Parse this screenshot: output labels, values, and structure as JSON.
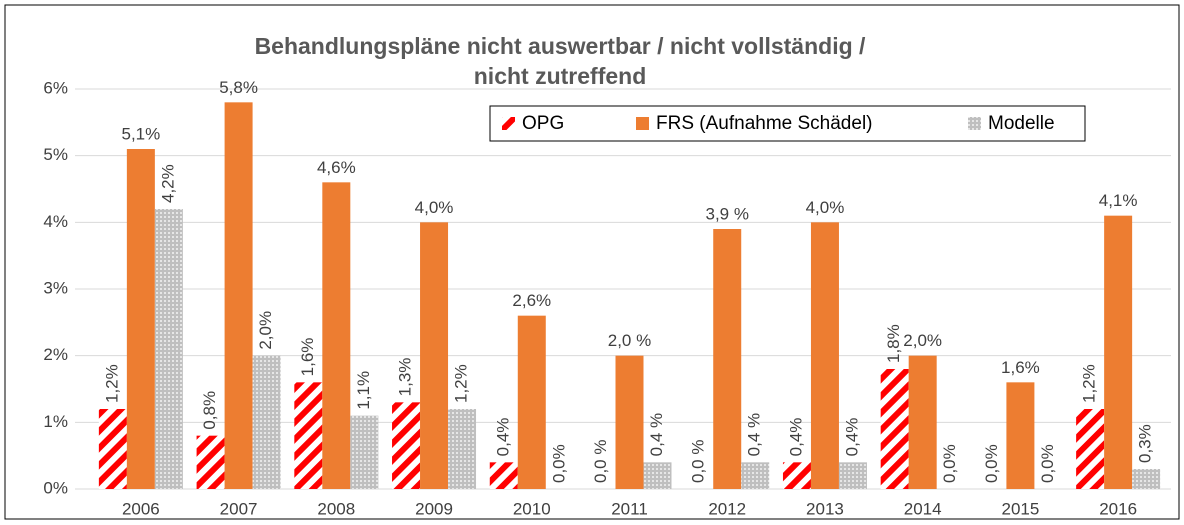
{
  "chart_data": {
    "type": "bar",
    "title": [
      "Behandlungspläne  nicht auswertbar / nicht vollständig /",
      "nicht zutreffend"
    ],
    "categories": [
      "2006",
      "2007",
      "2008",
      "2009",
      "2010",
      "2011",
      "2012",
      "2013",
      "2014",
      "2015",
      "2016"
    ],
    "series": [
      {
        "name": "OPG",
        "color": "#ff0000",
        "values": [
          1.2,
          0.8,
          1.6,
          1.3,
          0.4,
          0.0,
          0.0,
          0.4,
          1.8,
          0.0,
          1.2
        ],
        "value_labels": [
          "1,2%",
          "0,8%",
          "1,6%",
          "1,3%",
          "0,4%",
          "0,0 %",
          "0,0 %",
          "0,4%",
          "1,8%",
          "0,0%",
          "1,2%"
        ]
      },
      {
        "name": "FRS (Aufnahme Schädel)",
        "color": "#ed7d31",
        "values": [
          5.1,
          5.8,
          4.6,
          4.0,
          2.6,
          2.0,
          3.9,
          4.0,
          2.0,
          1.6,
          4.1
        ],
        "value_labels": [
          "5,1%",
          "5,8%",
          "4,6%",
          "4,0%",
          "2,6%",
          "2,0 %",
          "3,9 %",
          "4,0%",
          "2,0%",
          "1,6%",
          "4,1%"
        ]
      },
      {
        "name": "Modelle",
        "color": "#bfbfbf",
        "values": [
          4.2,
          2.0,
          1.1,
          1.2,
          0.0,
          0.4,
          0.4,
          0.4,
          0.0,
          0.0,
          0.3
        ],
        "value_labels": [
          "4,2%",
          "2,0%",
          "1,1%",
          "1,2%",
          "0,0%",
          "0,4 %",
          "0,4 %",
          "0,4%",
          "0,0%",
          "0,0%",
          "0,3%"
        ]
      }
    ],
    "ylim": [
      0,
      6
    ],
    "yticks": [
      {
        "value": 0,
        "label": "0%"
      },
      {
        "value": 1,
        "label": "1%"
      },
      {
        "value": 2,
        "label": "2%"
      },
      {
        "value": 3,
        "label": "3%"
      },
      {
        "value": 4,
        "label": "4%"
      },
      {
        "value": 5,
        "label": "5%"
      },
      {
        "value": 6,
        "label": "6%"
      }
    ],
    "grid": true,
    "legend": "top-right"
  }
}
